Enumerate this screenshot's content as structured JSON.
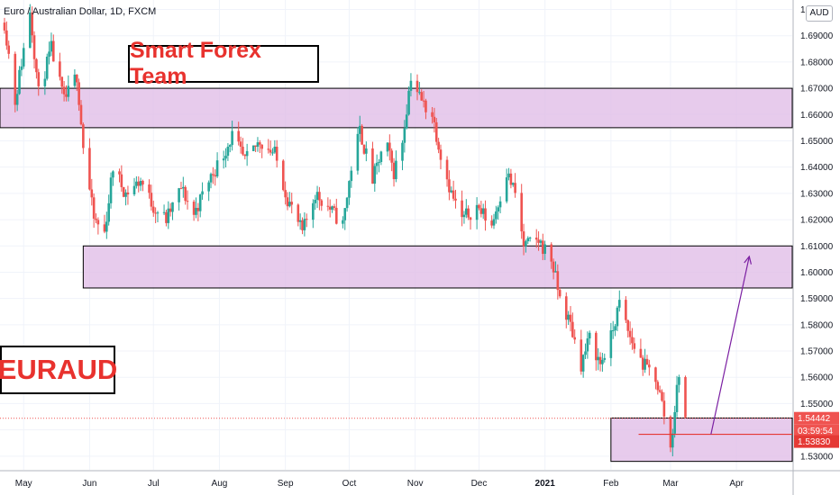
{
  "chart_title": "Euro / Australian Dollar, 1D, FXCM",
  "currency_button": "AUD",
  "team_label": "Smart Forex Team",
  "pair_label": "EURAUD",
  "price_tags": {
    "last_price": "1.54442",
    "countdown": "03:59:54",
    "level_price": "1.53830"
  },
  "colors": {
    "bull": "#26a69a",
    "bear": "#ef5350",
    "zone_fill": "#e1bee7",
    "arrow": "#7b1fa2",
    "level_line": "#e53935"
  },
  "chart_data": {
    "type": "candlestick",
    "title": "Euro / Australian Dollar, 1D, FXCM",
    "ylim": [
      1.525,
      1.705
    ],
    "y_ticks": [
      "1.53000",
      "1.54000",
      "1.55000",
      "1.56000",
      "1.57000",
      "1.58000",
      "1.59000",
      "1.60000",
      "1.61000",
      "1.62000",
      "1.63000",
      "1.64000",
      "1.65000",
      "1.66000",
      "1.67000",
      "1.68000",
      "1.69000",
      "1.70000"
    ],
    "x_ticks": [
      "May",
      "Jun",
      "Jul",
      "Aug",
      "Sep",
      "Oct",
      "Nov",
      "Dec",
      "2021",
      "Feb",
      "Mar",
      "Apr"
    ],
    "path": [
      [
        "2020-04-22",
        1.695
      ],
      [
        "2020-04-27",
        1.665
      ],
      [
        "2020-05-04",
        1.7
      ],
      [
        "2020-05-08",
        1.668
      ],
      [
        "2020-05-14",
        1.685
      ],
      [
        "2020-05-20",
        1.665
      ],
      [
        "2020-05-26",
        1.675
      ],
      [
        "2020-05-29",
        1.648
      ],
      [
        "2020-06-03",
        1.62
      ],
      [
        "2020-06-08",
        1.615
      ],
      [
        "2020-06-12",
        1.64
      ],
      [
        "2020-06-18",
        1.63
      ],
      [
        "2020-06-25",
        1.635
      ],
      [
        "2020-07-01",
        1.625
      ],
      [
        "2020-07-07",
        1.62
      ],
      [
        "2020-07-14",
        1.632
      ],
      [
        "2020-07-20",
        1.622
      ],
      [
        "2020-07-27",
        1.635
      ],
      [
        "2020-08-03",
        1.645
      ],
      [
        "2020-08-07",
        1.652
      ],
      [
        "2020-08-13",
        1.642
      ],
      [
        "2020-08-20",
        1.65
      ],
      [
        "2020-08-27",
        1.645
      ],
      [
        "2020-09-02",
        1.628
      ],
      [
        "2020-09-09",
        1.615
      ],
      [
        "2020-09-15",
        1.63
      ],
      [
        "2020-09-21",
        1.625
      ],
      [
        "2020-09-28",
        1.618
      ],
      [
        "2020-10-02",
        1.64
      ],
      [
        "2020-10-06",
        1.654
      ],
      [
        "2020-10-12",
        1.635
      ],
      [
        "2020-10-18",
        1.65
      ],
      [
        "2020-10-22",
        1.638
      ],
      [
        "2020-10-26",
        1.65
      ],
      [
        "2020-10-30",
        1.675
      ],
      [
        "2020-11-04",
        1.665
      ],
      [
        "2020-11-09",
        1.66
      ],
      [
        "2020-11-13",
        1.645
      ],
      [
        "2020-11-18",
        1.63
      ],
      [
        "2020-11-23",
        1.62
      ],
      [
        "2020-11-30",
        1.625
      ],
      [
        "2020-12-07",
        1.618
      ],
      [
        "2020-12-14",
        1.638
      ],
      [
        "2020-12-18",
        1.63
      ],
      [
        "2020-12-22",
        1.61
      ],
      [
        "2020-12-29",
        1.612
      ],
      [
        "2021-01-04",
        1.605
      ],
      [
        "2021-01-08",
        1.59
      ],
      [
        "2021-01-13",
        1.58
      ],
      [
        "2021-01-18",
        1.565
      ],
      [
        "2021-01-22",
        1.575
      ],
      [
        "2021-01-27",
        1.565
      ],
      [
        "2021-02-01",
        1.575
      ],
      [
        "2021-02-05",
        1.588
      ],
      [
        "2021-02-10",
        1.575
      ],
      [
        "2021-02-16",
        1.565
      ],
      [
        "2021-02-22",
        1.56
      ],
      [
        "2021-02-25",
        1.55
      ],
      [
        "2021-03-01",
        1.533
      ],
      [
        "2021-03-03",
        1.548
      ],
      [
        "2021-03-05",
        1.562
      ],
      [
        "2021-03-08",
        1.5444
      ]
    ],
    "annotations": {
      "zones": [
        {
          "from": "2020-04-15",
          "to": "2021-05-01",
          "low": 1.655,
          "high": 1.67
        },
        {
          "from": "2020-05-29",
          "to": "2021-05-01",
          "low": 1.594,
          "high": 1.61
        },
        {
          "from": "2021-02-01",
          "to": "2021-05-01",
          "low": 1.528,
          "high": 1.5445
        }
      ],
      "level_line": {
        "from": "2021-02-14",
        "to": "2021-05-01",
        "price": 1.5383
      },
      "projection_arrow": {
        "from": [
          "2021-03-20",
          1.5383
        ],
        "to": [
          "2021-04-07",
          1.606
        ]
      }
    }
  }
}
